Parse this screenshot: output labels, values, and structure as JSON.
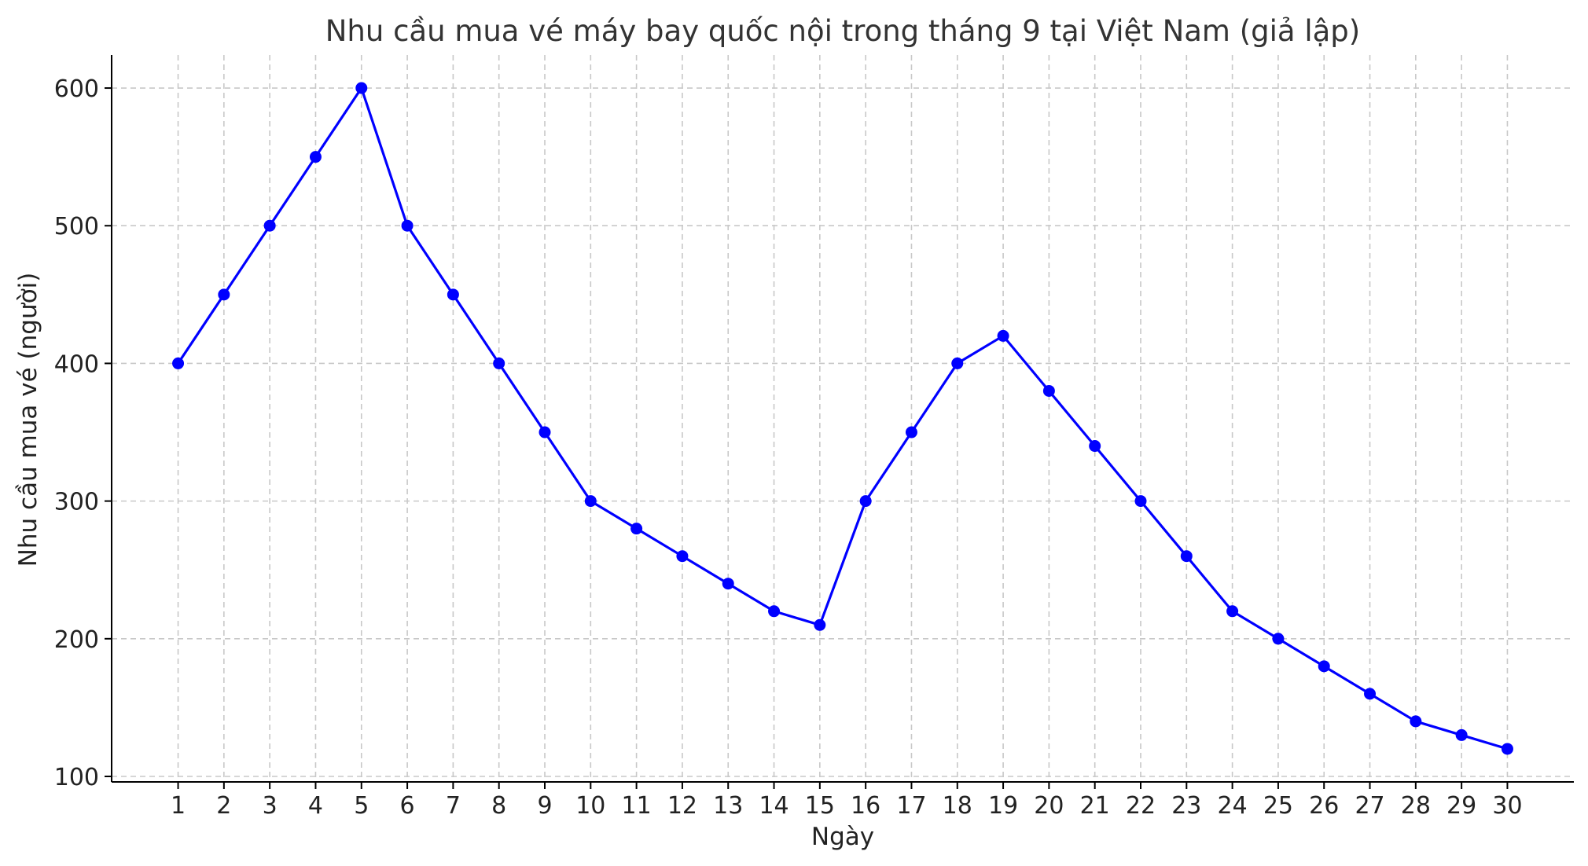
{
  "chart_data": {
    "type": "line",
    "title": "Nhu cầu mua vé máy bay quốc nội trong tháng 9 tại Việt Nam (giả lập)",
    "xlabel": "Ngày",
    "ylabel": "Nhu cầu mua vé (người)",
    "x": [
      1,
      2,
      3,
      4,
      5,
      6,
      7,
      8,
      9,
      10,
      11,
      12,
      13,
      14,
      15,
      16,
      17,
      18,
      19,
      20,
      21,
      22,
      23,
      24,
      25,
      26,
      27,
      28,
      29,
      30
    ],
    "x_tick_labels": [
      "1",
      "2",
      "3",
      "4",
      "5",
      "6",
      "7",
      "8",
      "9",
      "10",
      "11",
      "12",
      "13",
      "14",
      "15",
      "16",
      "17",
      "18",
      "19",
      "20",
      "21",
      "22",
      "23",
      "24",
      "25",
      "26",
      "27",
      "28",
      "29",
      "30"
    ],
    "series": [
      {
        "values": [
          400,
          450,
          500,
          550,
          600,
          500,
          450,
          400,
          350,
          300,
          280,
          260,
          240,
          220,
          210,
          300,
          350,
          400,
          420,
          380,
          340,
          300,
          260,
          220,
          200,
          180,
          160,
          140,
          130,
          120
        ],
        "color": "#0000ff",
        "marker": "circle"
      }
    ],
    "y_ticks": [
      100,
      200,
      300,
      400,
      500,
      600
    ],
    "y_tick_labels": [
      "100",
      "200",
      "300",
      "400",
      "500",
      "600"
    ],
    "xlim": [
      -0.45,
      31.45
    ],
    "ylim": [
      96,
      624
    ],
    "grid": true,
    "legend": "none"
  }
}
